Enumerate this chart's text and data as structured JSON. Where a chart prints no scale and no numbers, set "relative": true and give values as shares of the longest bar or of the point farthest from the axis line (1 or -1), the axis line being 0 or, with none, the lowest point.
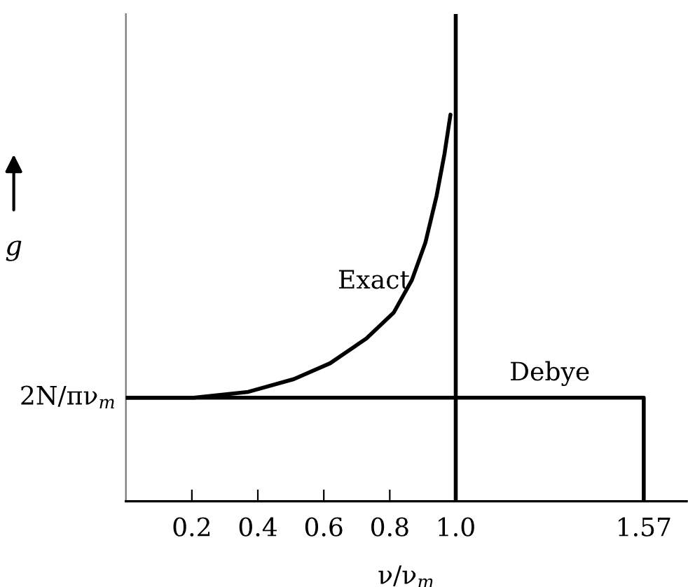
{
  "chart_data": {
    "type": "line",
    "relative": true,
    "xlabel": "ν/ν$_{m}$",
    "ylabel": "g",
    "xlim": [
      0,
      1.7
    ],
    "xticks": [
      0.2,
      0.4,
      0.6,
      0.8,
      {
        "value": 1,
        "label": "1.0"
      },
      1.57
    ],
    "x": [
      0,
      0.206,
      0.371,
      0.509,
      0.619,
      0.729,
      0.812,
      0.867,
      0.908,
      0.942,
      0.966,
      0.984
    ],
    "series": [
      {
        "name": "Exact",
        "color": "#000000",
        "values": [
          0.268,
          0.268,
          0.283,
          0.316,
          0.357,
          0.421,
          0.488,
          0.572,
          0.669,
          0.79,
          0.899,
          1.0
        ]
      },
      {
        "name": "Debye",
        "color": "#000000",
        "x": [
          0,
          1.0,
          1.57,
          1.57
        ],
        "values": [
          0.268,
          0.268,
          0.268,
          0
        ]
      }
    ],
    "ref_lines": [
      {
        "axis": "x",
        "value": 1.0,
        "color": "#000000"
      }
    ],
    "annotations": [
      {
        "text": "2N/πν$_{m}$",
        "x": 0,
        "y": 0.268
      }
    ],
    "grid": false,
    "legend": false,
    "marker": "none",
    "line_style": "solid"
  }
}
